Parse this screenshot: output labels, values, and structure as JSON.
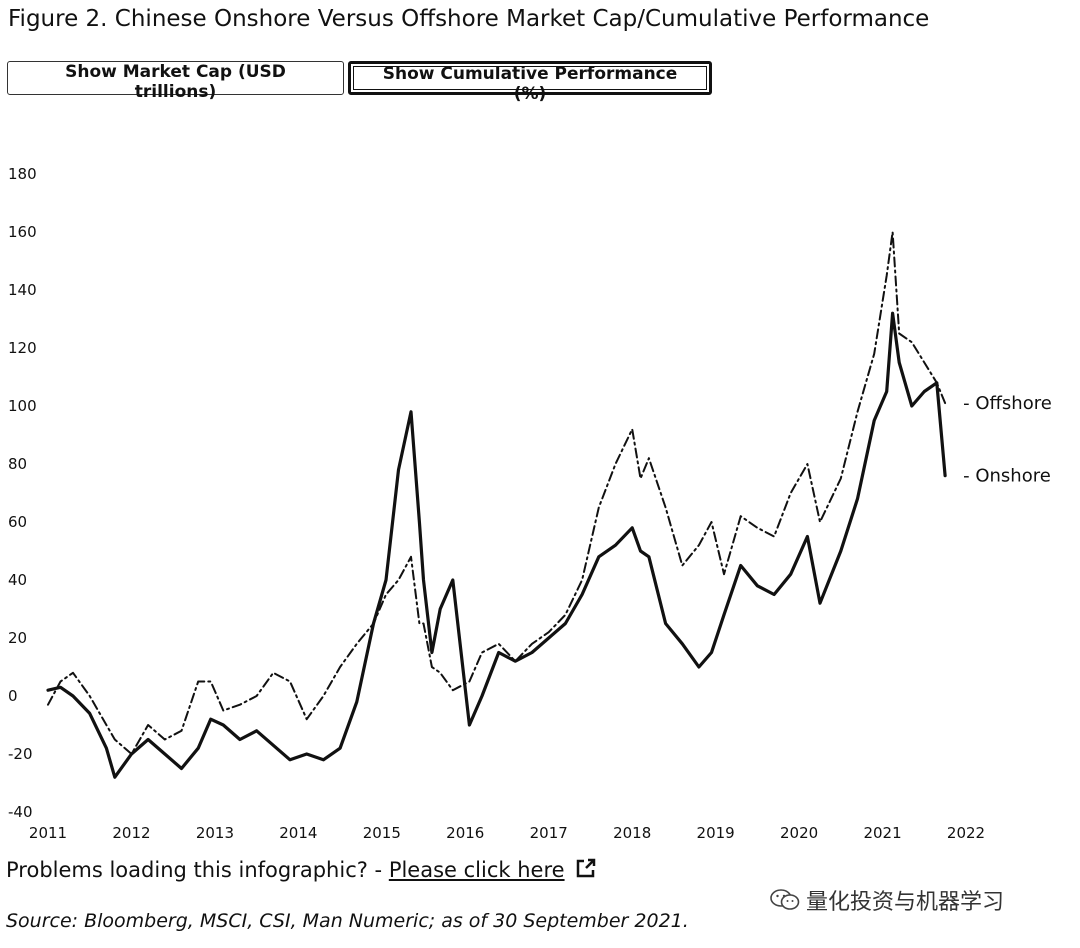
{
  "title": "Figure 2. Chinese Onshore Versus Offshore Market Cap/Cumulative Performance",
  "buttons": {
    "market_cap": "Show Market Cap (USD trillions)",
    "cumulative_performance": "Show Cumulative Performance (%)"
  },
  "footer": {
    "problems_text": "Problems loading this infographic? - ",
    "link_text": "Please click here",
    "source": "Source: Bloomberg, MSCI, CSI, Man Numeric; as of 30 September 2021.",
    "watermark": "量化投资与机器学习"
  },
  "chart_data": {
    "type": "line",
    "title": "",
    "xlabel": "",
    "ylabel": "",
    "ylim": [
      -40,
      180
    ],
    "xlim": [
      2011,
      2022
    ],
    "yticks": [
      -40,
      -20,
      0,
      20,
      40,
      60,
      80,
      100,
      120,
      140,
      160,
      180
    ],
    "xticks": [
      2011,
      2012,
      2013,
      2014,
      2015,
      2016,
      2017,
      2018,
      2019,
      2020,
      2021,
      2022
    ],
    "grid": false,
    "legend": "end-of-line labels",
    "series": [
      {
        "name": "Onshore",
        "style": "solid",
        "x": [
          2011.0,
          2011.15,
          2011.3,
          2011.5,
          2011.7,
          2011.8,
          2012.0,
          2012.2,
          2012.4,
          2012.6,
          2012.8,
          2012.95,
          2013.1,
          2013.3,
          2013.5,
          2013.7,
          2013.9,
          2014.1,
          2014.3,
          2014.5,
          2014.7,
          2014.9,
          2015.05,
          2015.2,
          2015.35,
          2015.45,
          2015.5,
          2015.6,
          2015.7,
          2015.85,
          2016.05,
          2016.2,
          2016.4,
          2016.6,
          2016.8,
          2017.0,
          2017.2,
          2017.4,
          2017.6,
          2017.8,
          2018.0,
          2018.1,
          2018.2,
          2018.4,
          2018.6,
          2018.8,
          2018.95,
          2019.1,
          2019.3,
          2019.5,
          2019.7,
          2019.9,
          2020.1,
          2020.25,
          2020.5,
          2020.7,
          2020.9,
          2021.05,
          2021.12,
          2021.2,
          2021.35,
          2021.5,
          2021.65,
          2021.75
        ],
        "y": [
          2,
          3,
          0,
          -6,
          -18,
          -28,
          -20,
          -15,
          -20,
          -25,
          -18,
          -8,
          -10,
          -15,
          -12,
          -17,
          -22,
          -20,
          -22,
          -18,
          -2,
          25,
          40,
          78,
          98,
          60,
          40,
          15,
          30,
          40,
          -10,
          0,
          15,
          12,
          15,
          20,
          25,
          35,
          48,
          52,
          58,
          50,
          48,
          25,
          18,
          10,
          15,
          28,
          45,
          38,
          35,
          42,
          55,
          32,
          50,
          68,
          95,
          105,
          132,
          115,
          100,
          105,
          108,
          76
        ]
      },
      {
        "name": "Offshore",
        "style": "dashed",
        "x": [
          2011.0,
          2011.15,
          2011.3,
          2011.5,
          2011.7,
          2011.8,
          2012.0,
          2012.2,
          2012.4,
          2012.6,
          2012.8,
          2012.95,
          2013.1,
          2013.3,
          2013.5,
          2013.7,
          2013.9,
          2014.1,
          2014.3,
          2014.5,
          2014.7,
          2014.9,
          2015.05,
          2015.2,
          2015.35,
          2015.45,
          2015.5,
          2015.6,
          2015.7,
          2015.85,
          2016.05,
          2016.2,
          2016.4,
          2016.6,
          2016.8,
          2017.0,
          2017.2,
          2017.4,
          2017.6,
          2017.8,
          2018.0,
          2018.1,
          2018.2,
          2018.4,
          2018.6,
          2018.8,
          2018.95,
          2019.1,
          2019.3,
          2019.5,
          2019.7,
          2019.9,
          2020.1,
          2020.25,
          2020.5,
          2020.7,
          2020.9,
          2021.05,
          2021.12,
          2021.2,
          2021.35,
          2021.5,
          2021.65,
          2021.75
        ],
        "y": [
          -3,
          5,
          8,
          0,
          -10,
          -15,
          -20,
          -10,
          -15,
          -12,
          5,
          5,
          -5,
          -3,
          0,
          8,
          5,
          -8,
          0,
          10,
          18,
          25,
          35,
          40,
          48,
          25,
          25,
          10,
          8,
          2,
          5,
          15,
          18,
          12,
          18,
          22,
          28,
          40,
          65,
          80,
          92,
          75,
          82,
          65,
          45,
          52,
          60,
          42,
          62,
          58,
          55,
          70,
          80,
          60,
          75,
          98,
          118,
          145,
          160,
          125,
          122,
          115,
          108,
          101
        ]
      }
    ]
  }
}
